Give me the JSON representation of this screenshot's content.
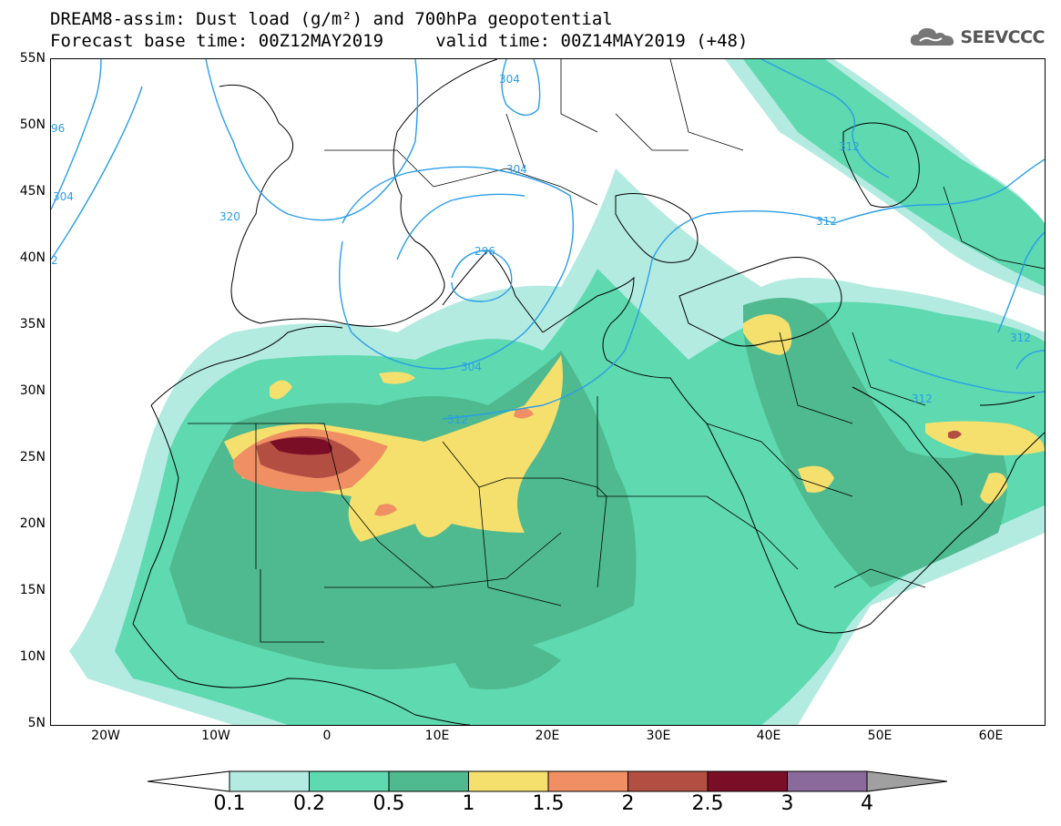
{
  "title": {
    "line1": "DREAM8-assim: Dust load (g/m²) and 700hPa geopotential",
    "line2": "Forecast base time: 00Z12MAY2019     valid time: 00Z14MAY2019 (+48)"
  },
  "logo": {
    "text": "SEEVCCC",
    "icon": "cloud-logo-icon"
  },
  "axes": {
    "lat_ticks": [
      "55N",
      "50N",
      "45N",
      "40N",
      "35N",
      "30N",
      "25N",
      "20N",
      "15N",
      "10N",
      "5N"
    ],
    "lon_ticks": [
      "20W",
      "10W",
      "0",
      "10E",
      "20E",
      "30E",
      "40E",
      "50E",
      "60E"
    ]
  },
  "contour_labels": [
    "304",
    "304",
    "304",
    "320",
    "312",
    "296",
    "304",
    "312",
    "312",
    "312",
    "312",
    "2",
    "96"
  ],
  "colorbar": {
    "ticks": [
      "0.1",
      "0.2",
      "0.5",
      "1",
      "1.5",
      "2",
      "2.5",
      "3",
      "4"
    ],
    "colors": [
      "#ffffff",
      "#b3ebe0",
      "#5ed9b0",
      "#4fb98f",
      "#f5e06e",
      "#ef8f63",
      "#b34e43",
      "#7a0e26",
      "#8a6a9a",
      "#a0a0a0"
    ]
  },
  "palette": {
    "contour": "#2a9ee8",
    "land_edge": "#000000",
    "d1": "#b3ebe0",
    "d2": "#5ed9b0",
    "d3": "#4fb98f",
    "d4": "#f5e06e",
    "d5": "#ef8f63",
    "d6": "#b34e43",
    "d7": "#7a0e26"
  }
}
